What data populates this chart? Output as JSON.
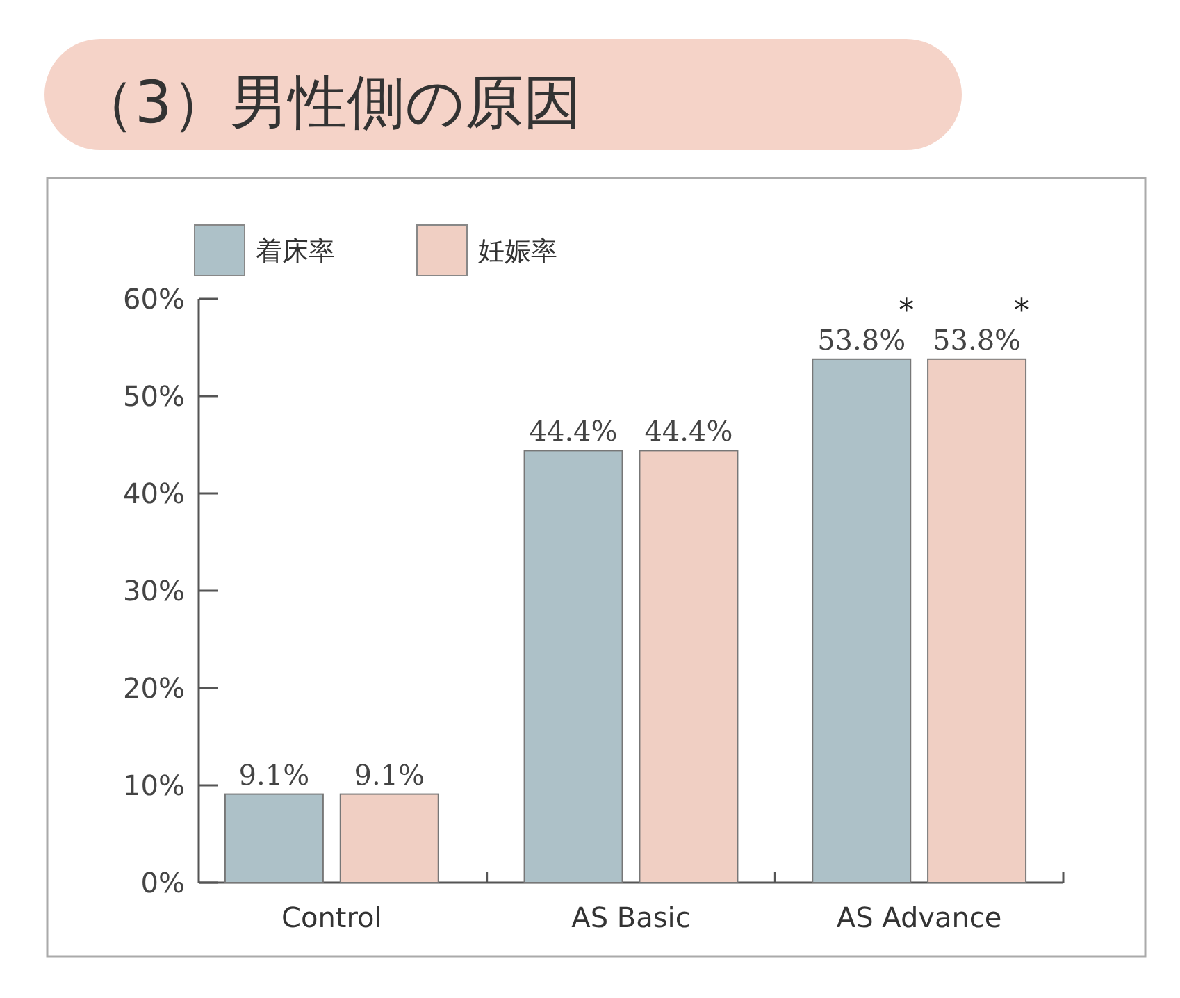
{
  "chart_data": {
    "type": "bar",
    "title": "（3）男性側の原因",
    "categories": [
      "Control",
      "AS Basic",
      "AS Advance"
    ],
    "series": [
      {
        "name": "着床率",
        "color": "#adc1c8",
        "values": [
          9.1,
          44.4,
          53.8
        ],
        "value_labels": [
          "9.1%",
          "44.4%",
          "53.8%"
        ]
      },
      {
        "name": "妊娠率",
        "color": "#f0cfc3",
        "values": [
          9.1,
          44.4,
          53.8
        ],
        "value_labels": [
          "9.1%",
          "44.4%",
          "53.8%"
        ]
      }
    ],
    "ylim": [
      0,
      60
    ],
    "yticks": [
      {
        "value": 0,
        "label": "0%"
      },
      {
        "value": 10,
        "label": "10%"
      },
      {
        "value": 20,
        "label": "20%"
      },
      {
        "value": 30,
        "label": "30%"
      },
      {
        "value": 40,
        "label": "40%"
      },
      {
        "value": 50,
        "label": "50%"
      },
      {
        "value": 60,
        "label": "60%"
      }
    ],
    "grid": false,
    "legend": "top left",
    "annotations": [
      "*",
      "*"
    ]
  }
}
